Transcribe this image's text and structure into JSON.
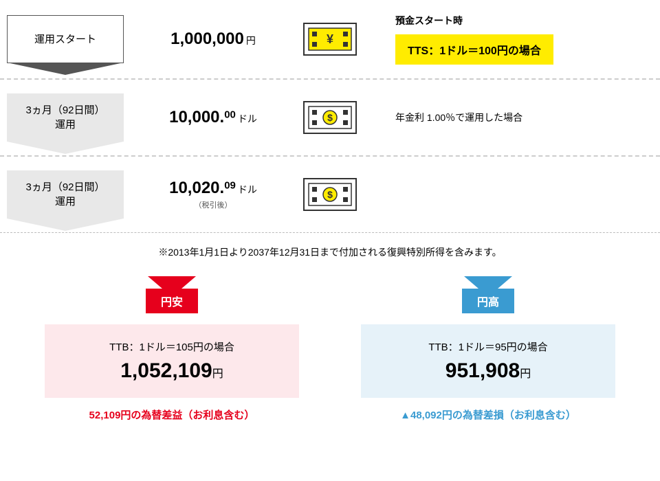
{
  "colors": {
    "yellow": "#ffec00",
    "red": "#e6001c",
    "blue": "#3a9bd1",
    "pinkBg": "#fde8eb",
    "blueBg": "#e6f2f9",
    "gray": "#e8e8e8",
    "borderGray": "#555"
  },
  "rows": [
    {
      "label": "運用スタート",
      "arrowStyle": "white",
      "amount": "1,000,000",
      "amountDec": "",
      "unit": "円",
      "sub": "",
      "icon": "yen",
      "noteTitle": "預金スタート時",
      "highlight": "TTS：1ドル＝100円の場合",
      "highlightBg": "#ffec00",
      "noteText": ""
    },
    {
      "label": "3ヵ月（92日間）\n運用",
      "arrowStyle": "gray",
      "amount": "10,000.",
      "amountDec": "00",
      "unit": "ドル",
      "sub": "",
      "icon": "dollar",
      "noteTitle": "",
      "highlight": "",
      "noteText": "年金利 1.00％で運用した場合"
    },
    {
      "label": "3ヵ月（92日間）\n運用",
      "arrowStyle": "gray",
      "amount": "10,020.",
      "amountDec": "09",
      "unit": "ドル",
      "sub": "（税引後）",
      "icon": "dollar",
      "noteTitle": "",
      "highlight": "",
      "noteText": ""
    }
  ],
  "footnote": "※2013年1月1日より2037年12月31日まで付加される復興特別所得を含みます。",
  "outcomes": [
    {
      "badge": "円安",
      "color": "#e6001c",
      "bg": "#fde8eb",
      "title": "TTB：1ドル＝105円の場合",
      "amount": "1,052,109",
      "unit": "円",
      "note": "52,109円の為替差益（お利息含む）",
      "noteColor": "#e6001c"
    },
    {
      "badge": "円高",
      "color": "#3a9bd1",
      "bg": "#e6f2f9",
      "title": "TTB：1ドル＝95円の場合",
      "amount": "951,908",
      "unit": "円",
      "note": "▲48,092円の為替差損（お利息含む）",
      "noteColor": "#3a9bd1"
    }
  ]
}
